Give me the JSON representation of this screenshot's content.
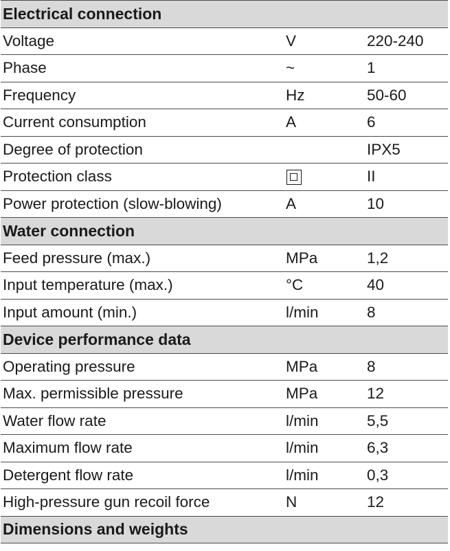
{
  "sections": [
    {
      "title": "Electrical connection",
      "rows": [
        {
          "name": "Voltage",
          "unit": "V",
          "value": "220-240"
        },
        {
          "name": "Phase",
          "unit": "~",
          "value": "1"
        },
        {
          "name": "Frequency",
          "unit": "Hz",
          "value": "50-60"
        },
        {
          "name": "Current consumption",
          "unit": "A",
          "value": "6"
        },
        {
          "name": "Degree of protection",
          "unit": "",
          "value": "IPX5"
        },
        {
          "name": "Protection class",
          "unit_icon": "protection-class-ii-icon",
          "value": "II"
        },
        {
          "name": "Power protection (slow-blowing)",
          "unit": "A",
          "value": "10"
        }
      ]
    },
    {
      "title": "Water connection",
      "rows": [
        {
          "name": "Feed pressure (max.)",
          "unit": "MPa",
          "value": "1,2"
        },
        {
          "name": "Input temperature (max.)",
          "unit": "°C",
          "value": "40"
        },
        {
          "name": "Input amount (min.)",
          "unit": "l/min",
          "value": "8"
        }
      ]
    },
    {
      "title": "Device performance data",
      "rows": [
        {
          "name": "Operating pressure",
          "unit": "MPa",
          "value": "8"
        },
        {
          "name": "Max. permissible pressure",
          "unit": "MPa",
          "value": "12"
        },
        {
          "name": "Water flow rate",
          "unit": "l/min",
          "value": "5,5"
        },
        {
          "name": "Maximum flow rate",
          "unit": "l/min",
          "value": "6,3"
        },
        {
          "name": "Detergent flow rate",
          "unit": "l/min",
          "value": "0,3"
        },
        {
          "name": "High-pressure gun recoil force",
          "unit": "N",
          "value": "12"
        }
      ]
    },
    {
      "title": "Dimensions and weights",
      "rows": []
    }
  ]
}
